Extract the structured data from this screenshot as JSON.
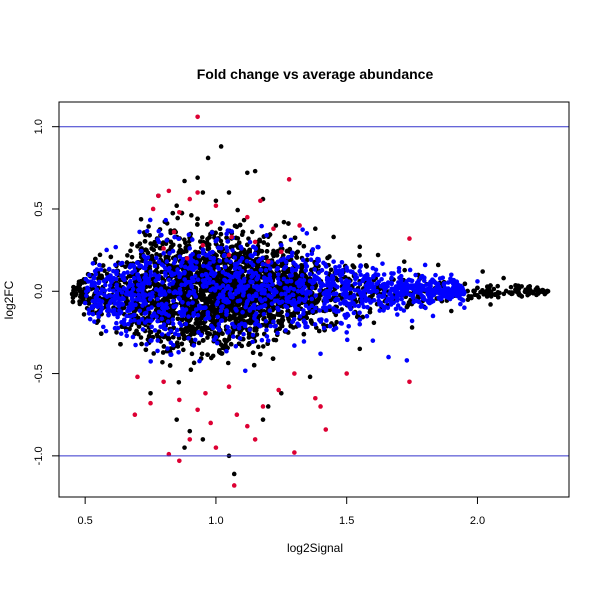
{
  "chart_data": {
    "type": "scatter",
    "title": "Fold change vs average abundance",
    "xlabel": "log2Signal",
    "ylabel": "log2FC",
    "xlim": [
      0.4,
      2.35
    ],
    "ylim": [
      -1.25,
      1.15
    ],
    "x_ticks": [
      0.5,
      1.0,
      1.5,
      2.0
    ],
    "x_tick_labels": [
      "0.5",
      "1.0",
      "1.5",
      "2.0"
    ],
    "y_ticks": [
      -1.0,
      -0.5,
      0.0,
      0.5,
      1.0
    ],
    "y_tick_labels": [
      "-1.0",
      "-0.5",
      "0.0",
      "0.5",
      "1.0"
    ],
    "reference_lines": [
      {
        "axis": "y",
        "value": 1.0,
        "color": "#3333cc"
      },
      {
        "axis": "y",
        "value": -1.0,
        "color": "#3333cc"
      }
    ],
    "grid": false,
    "legend": "none",
    "colors": {
      "black": "#000000",
      "blue": "#0000ff",
      "red": "#dd0033"
    },
    "cloud": {
      "description_free_parameters": true,
      "n_points": 4200,
      "x_range": [
        0.45,
        2.27
      ],
      "x_peak": 1.0,
      "spread_envelope": [
        [
          0.45,
          0.035
        ],
        [
          0.6,
          0.11
        ],
        [
          0.8,
          0.17
        ],
        [
          1.0,
          0.17
        ],
        [
          1.2,
          0.14
        ],
        [
          1.4,
          0.1
        ],
        [
          1.6,
          0.07
        ],
        [
          1.8,
          0.04
        ],
        [
          2.0,
          0.025
        ],
        [
          2.27,
          0.01
        ]
      ]
    },
    "series": [
      {
        "color": "black",
        "points": [
          [
            1.02,
            0.88
          ],
          [
            0.97,
            0.81
          ],
          [
            1.15,
            0.73
          ],
          [
            1.12,
            0.72
          ],
          [
            0.93,
            0.69
          ],
          [
            0.88,
            0.67
          ],
          [
            0.78,
            0.58
          ],
          [
            0.95,
            0.6
          ],
          [
            1.05,
            0.6
          ],
          [
            1.18,
            0.56
          ],
          [
            1.0,
            0.55
          ],
          [
            0.85,
            0.52
          ],
          [
            1.26,
            0.42
          ],
          [
            1.38,
            0.38
          ],
          [
            1.45,
            0.33
          ],
          [
            1.55,
            0.27
          ],
          [
            1.62,
            0.22
          ],
          [
            1.72,
            0.18
          ],
          [
            1.85,
            0.16
          ],
          [
            2.02,
            0.12
          ],
          [
            2.1,
            0.08
          ],
          [
            2.2,
            0.03
          ],
          [
            2.27,
            0.0
          ],
          [
            0.75,
            -0.62
          ],
          [
            0.85,
            -0.78
          ],
          [
            0.9,
            -0.85
          ],
          [
            0.88,
            -0.95
          ],
          [
            0.95,
            -0.9
          ],
          [
            1.05,
            -1.0
          ],
          [
            1.07,
            -1.11
          ],
          [
            1.18,
            -0.78
          ],
          [
            1.25,
            -0.62
          ],
          [
            1.36,
            -0.52
          ],
          [
            1.55,
            -0.35
          ],
          [
            1.75,
            -0.22
          ],
          [
            1.9,
            -0.12
          ],
          [
            2.05,
            -0.08
          ],
          [
            0.62,
            -0.25
          ],
          [
            0.55,
            -0.18
          ],
          [
            1.2,
            -0.7
          ]
        ]
      },
      {
        "color": "blue",
        "points": [
          [
            1.25,
            0.28
          ],
          [
            1.35,
            0.22
          ],
          [
            1.45,
            0.18
          ],
          [
            1.6,
            0.14
          ],
          [
            1.7,
            0.12
          ],
          [
            1.8,
            0.16
          ],
          [
            1.9,
            0.1
          ],
          [
            2.0,
            0.06
          ],
          [
            1.1,
            0.2
          ],
          [
            0.9,
            0.18
          ],
          [
            1.4,
            -0.38
          ],
          [
            1.3,
            -0.33
          ],
          [
            1.2,
            -0.3
          ],
          [
            1.5,
            -0.25
          ],
          [
            1.6,
            -0.3
          ],
          [
            1.66,
            -0.4
          ],
          [
            1.73,
            -0.42
          ],
          [
            1.55,
            -0.2
          ],
          [
            1.75,
            -0.18
          ],
          [
            1.83,
            -0.15
          ],
          [
            1.95,
            -0.1
          ],
          [
            0.75,
            -0.3
          ],
          [
            0.65,
            -0.2
          ],
          [
            0.6,
            0.06
          ],
          [
            1.0,
            -0.28
          ],
          [
            0.7,
            0.1
          ],
          [
            0.8,
            -0.22
          ],
          [
            1.45,
            0.05
          ],
          [
            1.15,
            -0.2
          ],
          [
            1.7,
            0.02
          ]
        ]
      },
      {
        "color": "red",
        "points": [
          [
            0.93,
            1.06
          ],
          [
            1.28,
            0.68
          ],
          [
            0.82,
            0.61
          ],
          [
            0.93,
            0.6
          ],
          [
            0.78,
            0.58
          ],
          [
            0.9,
            0.56
          ],
          [
            1.17,
            0.55
          ],
          [
            1.0,
            0.52
          ],
          [
            0.76,
            0.5
          ],
          [
            0.86,
            0.48
          ],
          [
            1.12,
            0.45
          ],
          [
            0.98,
            0.42
          ],
          [
            1.32,
            0.4
          ],
          [
            1.22,
            0.38
          ],
          [
            0.84,
            0.36
          ],
          [
            1.06,
            0.33
          ],
          [
            1.74,
            0.32
          ],
          [
            1.15,
            0.3
          ],
          [
            0.95,
            0.28
          ],
          [
            0.8,
            0.26
          ],
          [
            1.25,
            0.24
          ],
          [
            1.05,
            0.22
          ],
          [
            0.89,
            0.2
          ],
          [
            1.2,
            0.18
          ],
          [
            0.7,
            -0.52
          ],
          [
            0.8,
            -0.55
          ],
          [
            1.3,
            -0.5
          ],
          [
            1.24,
            -0.6
          ],
          [
            0.86,
            -0.66
          ],
          [
            0.93,
            -0.72
          ],
          [
            1.08,
            -0.75
          ],
          [
            1.74,
            -0.55
          ],
          [
            1.38,
            -0.65
          ],
          [
            0.98,
            -0.8
          ],
          [
            1.12,
            -0.82
          ],
          [
            1.42,
            -0.84
          ],
          [
            1.3,
            -0.98
          ],
          [
            0.69,
            -0.75
          ],
          [
            0.82,
            -0.99
          ],
          [
            0.86,
            -1.03
          ],
          [
            1.07,
            -1.18
          ],
          [
            0.9,
            -0.9
          ],
          [
            1.05,
            -0.58
          ],
          [
            0.96,
            -0.62
          ],
          [
            1.18,
            -0.7
          ],
          [
            1.4,
            -0.7
          ],
          [
            1.5,
            -0.5
          ],
          [
            1.15,
            -0.9
          ],
          [
            0.75,
            -0.68
          ],
          [
            1.0,
            -0.95
          ]
        ]
      }
    ]
  }
}
